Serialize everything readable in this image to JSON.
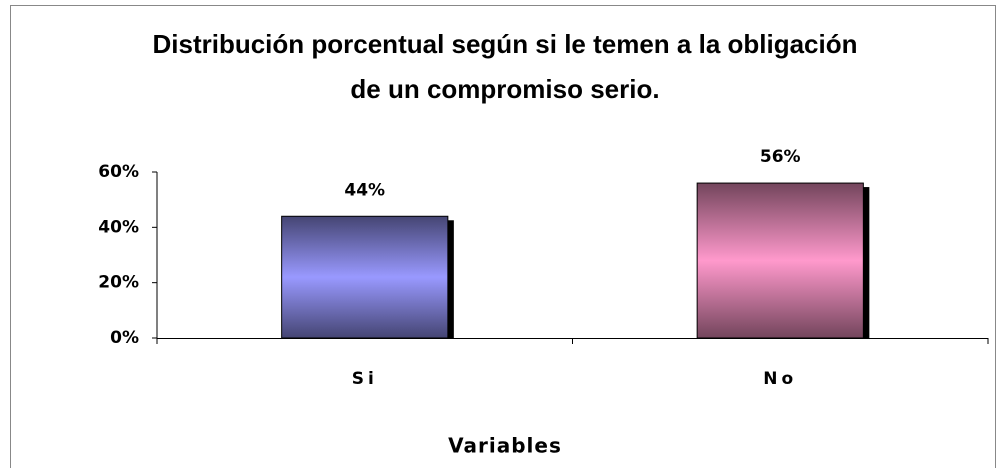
{
  "chart_data": {
    "type": "bar",
    "title": "Distribución porcentual según si le temen a la obligación de un compromiso serio.",
    "x_label": "Variables",
    "categories": [
      "Si",
      "No"
    ],
    "values": [
      44,
      56
    ],
    "value_labels": [
      "44%",
      "56%"
    ],
    "colors": [
      "#9999ff",
      "#ff99cc"
    ],
    "ylim": [
      0,
      60
    ],
    "yticks": [
      {
        "value": 0,
        "label": "0%"
      },
      {
        "value": 20,
        "label": "20%"
      },
      {
        "value": 40,
        "label": "40%"
      },
      {
        "value": 60,
        "label": "60%"
      }
    ],
    "grid": false
  }
}
